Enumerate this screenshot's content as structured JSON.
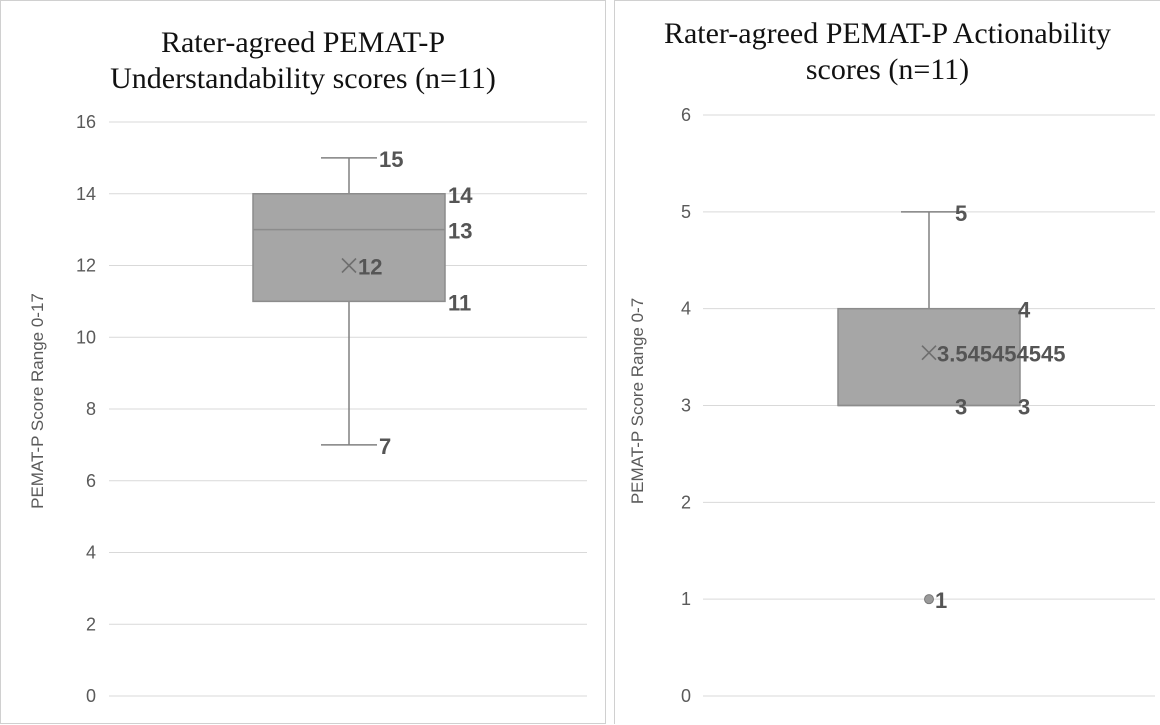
{
  "chart_data": [
    {
      "type": "box",
      "title_lines": [
        "Rater-agreed PEMAT-P",
        "Understandability  scores (n=11)"
      ],
      "xlabel": "",
      "ylabel": "PEMAT-P Score Range 0-17",
      "ylim": [
        0,
        16
      ],
      "yticks": [
        0,
        2,
        4,
        6,
        8,
        10,
        12,
        14,
        16
      ],
      "grid": true,
      "box": {
        "min": 7,
        "q1": 11,
        "median": 13,
        "q3": 14,
        "max": 15,
        "mean": 12
      },
      "labels": {
        "max": "15",
        "q3": "14",
        "median": "13",
        "mean": "12",
        "q1": "11",
        "min": "7"
      },
      "outliers": [],
      "color": "#a6a6a6"
    },
    {
      "type": "box",
      "title_lines": [
        "Rater-agreed PEMAT-P Actionability",
        "scores (n=11)"
      ],
      "xlabel": "",
      "ylabel": "PEMAT-P Score Range 0-7",
      "ylim": [
        0,
        6
      ],
      "yticks": [
        0,
        1,
        2,
        3,
        4,
        5,
        6
      ],
      "grid": true,
      "box": {
        "min": 3,
        "q1": 3,
        "median": 3,
        "q3": 4,
        "max": 5,
        "mean": 3.545454545
      },
      "labels": {
        "max": "5",
        "q3": "4",
        "median": "3",
        "q1": "3",
        "mean": "3.545454545"
      },
      "outliers": [
        {
          "value": 1,
          "label": "1"
        }
      ],
      "color": "#a6a6a6"
    }
  ]
}
